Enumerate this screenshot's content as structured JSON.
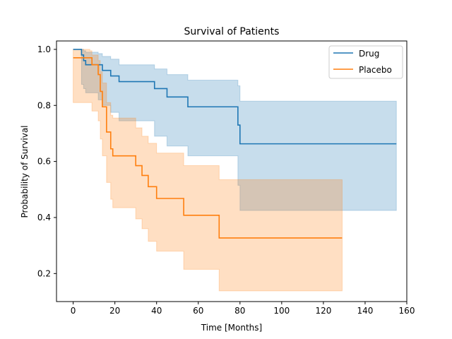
{
  "chart_data": {
    "type": "line",
    "title": "Survival of Patients",
    "xlabel": "Time [Months]",
    "ylabel": "Probability of Survival",
    "xlim": [
      -8,
      160
    ],
    "ylim": [
      0.1,
      1.03
    ],
    "xticks": [
      0,
      20,
      40,
      60,
      80,
      100,
      120,
      140,
      160
    ],
    "yticks": [
      0.2,
      0.4,
      0.6,
      0.8,
      1.0
    ],
    "ytick_labels": [
      "0.2",
      "0.4",
      "0.6",
      "0.8",
      "1.0"
    ],
    "grid": false,
    "legend_position": "top-right",
    "series": [
      {
        "name": "Drug",
        "color": "#1f77b4",
        "step": [
          [
            0,
            1.0
          ],
          [
            4,
            0.98
          ],
          [
            5,
            0.96
          ],
          [
            6,
            0.945
          ],
          [
            12,
            0.945
          ],
          [
            14,
            0.925
          ],
          [
            18,
            0.905
          ],
          [
            22,
            0.885
          ],
          [
            39,
            0.885
          ],
          [
            39,
            0.86
          ],
          [
            45,
            0.86
          ],
          [
            45,
            0.83
          ],
          [
            55,
            0.83
          ],
          [
            55,
            0.795
          ],
          [
            79,
            0.795
          ],
          [
            79,
            0.73
          ],
          [
            80,
            0.73
          ],
          [
            80,
            0.663
          ],
          [
            155,
            0.663
          ]
        ],
        "ci_lower": [
          [
            0,
            1.0
          ],
          [
            4,
            0.875
          ],
          [
            5,
            0.86
          ],
          [
            6,
            0.845
          ],
          [
            12,
            0.82
          ],
          [
            14,
            0.8
          ],
          [
            18,
            0.775
          ],
          [
            22,
            0.745
          ],
          [
            39,
            0.69
          ],
          [
            45,
            0.655
          ],
          [
            55,
            0.62
          ],
          [
            79,
            0.515
          ],
          [
            80,
            0.425
          ],
          [
            155,
            0.425
          ]
        ],
        "ci_upper": [
          [
            0,
            1.0
          ],
          [
            4,
            1.0
          ],
          [
            5,
            0.995
          ],
          [
            6,
            0.99
          ],
          [
            12,
            0.985
          ],
          [
            14,
            0.975
          ],
          [
            18,
            0.965
          ],
          [
            22,
            0.945
          ],
          [
            39,
            0.93
          ],
          [
            45,
            0.91
          ],
          [
            55,
            0.89
          ],
          [
            79,
            0.87
          ],
          [
            80,
            0.815
          ],
          [
            155,
            0.815
          ]
        ]
      },
      {
        "name": "Placebo",
        "color": "#ff7f0e",
        "step": [
          [
            0,
            0.97
          ],
          [
            8,
            0.97
          ],
          [
            9,
            0.945
          ],
          [
            12,
            0.91
          ],
          [
            13,
            0.85
          ],
          [
            14,
            0.795
          ],
          [
            16,
            0.705
          ],
          [
            18,
            0.645
          ],
          [
            19,
            0.62
          ],
          [
            30,
            0.585
          ],
          [
            33,
            0.55
          ],
          [
            36,
            0.51
          ],
          [
            40,
            0.468
          ],
          [
            53,
            0.408
          ],
          [
            70,
            0.327
          ],
          [
            129,
            0.327
          ]
        ],
        "ci_lower": [
          [
            0,
            0.81
          ],
          [
            8,
            0.81
          ],
          [
            9,
            0.78
          ],
          [
            12,
            0.745
          ],
          [
            13,
            0.68
          ],
          [
            14,
            0.62
          ],
          [
            16,
            0.525
          ],
          [
            18,
            0.465
          ],
          [
            19,
            0.435
          ],
          [
            30,
            0.395
          ],
          [
            33,
            0.36
          ],
          [
            36,
            0.315
          ],
          [
            40,
            0.28
          ],
          [
            53,
            0.215
          ],
          [
            70,
            0.138
          ],
          [
            129,
            0.138
          ]
        ],
        "ci_upper": [
          [
            0,
            1.0
          ],
          [
            8,
            0.995
          ],
          [
            9,
            0.98
          ],
          [
            12,
            0.96
          ],
          [
            13,
            0.92
          ],
          [
            14,
            0.88
          ],
          [
            16,
            0.81
          ],
          [
            18,
            0.765
          ],
          [
            19,
            0.755
          ],
          [
            30,
            0.72
          ],
          [
            33,
            0.69
          ],
          [
            36,
            0.665
          ],
          [
            40,
            0.63
          ],
          [
            53,
            0.585
          ],
          [
            70,
            0.535
          ],
          [
            129,
            0.535
          ]
        ]
      }
    ]
  }
}
